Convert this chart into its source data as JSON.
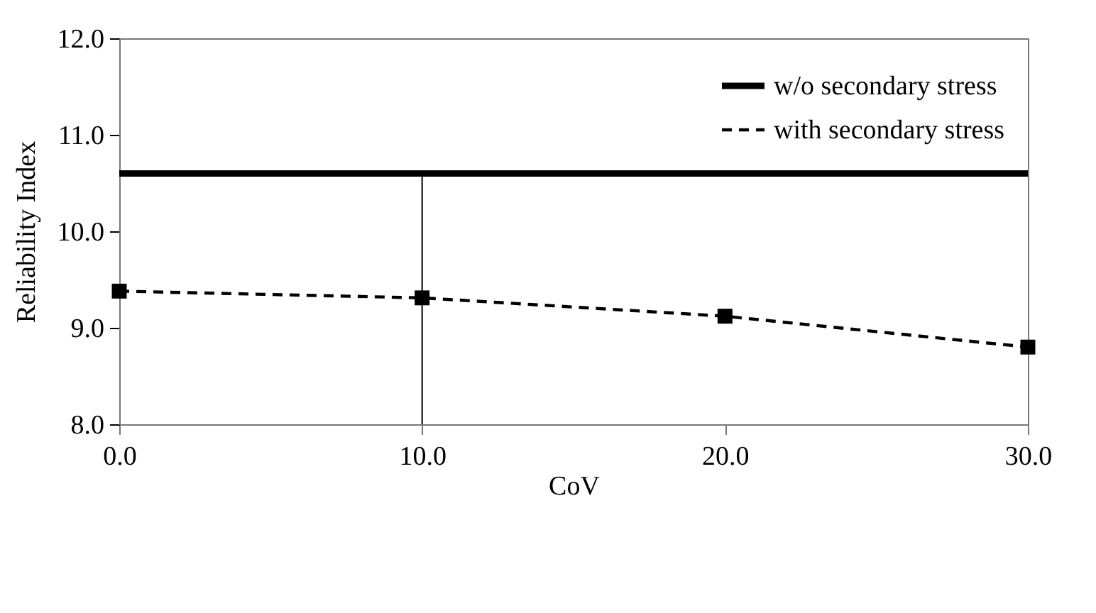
{
  "chart_data": {
    "type": "line",
    "xlabel": "CoV",
    "ylabel": "Reliability Index",
    "xlim": [
      0,
      30
    ],
    "xticks": [
      {
        "value": 0,
        "label": "0.0"
      },
      {
        "value": 10,
        "label": "10.0"
      },
      {
        "value": 20,
        "label": "20.0"
      },
      {
        "value": 30,
        "label": "30.0"
      }
    ],
    "ylim": [
      8,
      12
    ],
    "yticks": [
      {
        "value": 8,
        "label": "8.0"
      },
      {
        "value": 9,
        "label": "9.0"
      },
      {
        "value": 10,
        "label": "10.0"
      },
      {
        "value": 11,
        "label": "11.0"
      },
      {
        "value": 12,
        "label": "12.0"
      }
    ],
    "grid": false,
    "legend": "top right",
    "series": [
      {
        "name": "w/o secondary stress",
        "color": "#000000",
        "x": [
          0,
          30
        ],
        "values": [
          10.6,
          10.6
        ],
        "line_style": "solid",
        "marker": "none"
      },
      {
        "name": "with secondary stress",
        "color": "#000000",
        "x": [
          0,
          10,
          20,
          30
        ],
        "values": [
          9.38,
          9.31,
          9.12,
          8.8
        ],
        "line_style": "dashed",
        "marker": "square"
      },
      {
        "color": "#000000",
        "x": [
          10,
          10
        ],
        "values": [
          8,
          10.6
        ],
        "line_style": "solid",
        "marker": "none"
      }
    ]
  }
}
